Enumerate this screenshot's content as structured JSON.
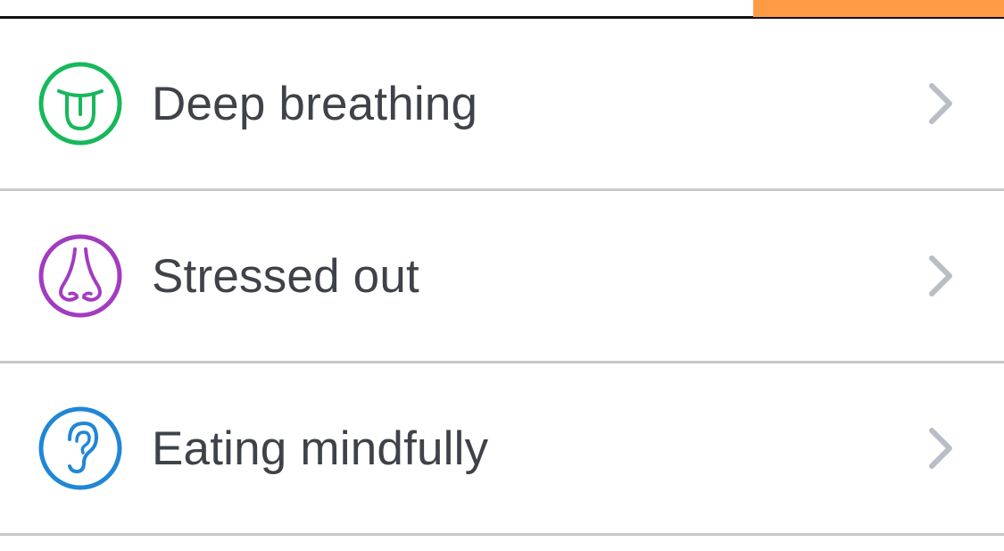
{
  "colors": {
    "accent_orange": "#ff9a45",
    "divider": "#c8c8ca",
    "text": "#3f4249",
    "chevron": "#b9bec5"
  },
  "items": [
    {
      "label": "Deep breathing",
      "icon": "tongue-face-icon",
      "color": "#17b85a"
    },
    {
      "label": "Stressed out",
      "icon": "nose-icon",
      "color": "#a23cbf"
    },
    {
      "label": "Eating mindfully",
      "icon": "ear-icon",
      "color": "#1f87d6"
    }
  ]
}
